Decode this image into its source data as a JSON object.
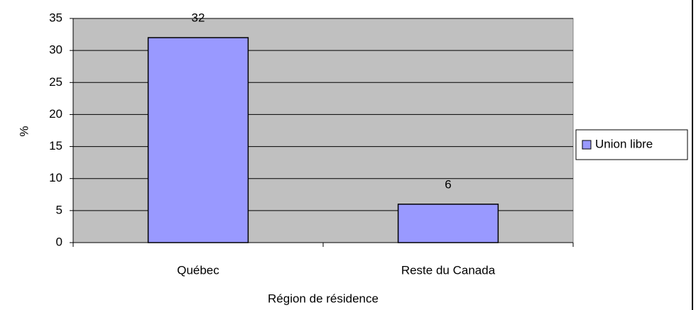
{
  "chart_data": {
    "type": "bar",
    "categories": [
      "Québec",
      "Reste du Canada"
    ],
    "series": [
      {
        "name": "Union libre",
        "color": "#9999ff",
        "values": [
          32,
          6
        ]
      }
    ],
    "ylabel": "%",
    "xlabel": "Région de résidence",
    "ylim": [
      0,
      35
    ],
    "yticks": [
      0,
      5,
      10,
      15,
      20,
      25,
      30,
      35
    ],
    "grid": true,
    "legend": "right",
    "plot_background": "#c0c0c0"
  }
}
